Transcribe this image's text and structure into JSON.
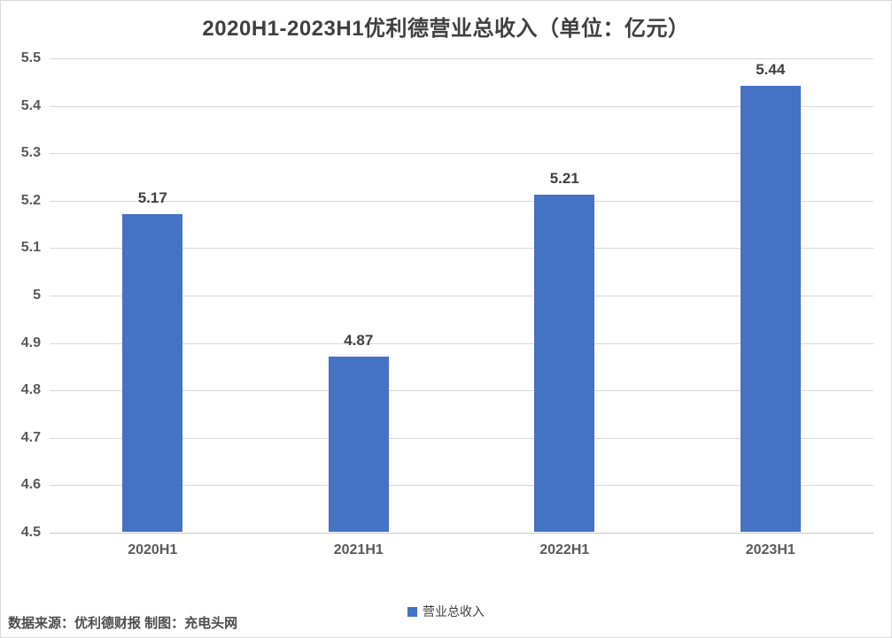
{
  "chart_data": {
    "type": "bar",
    "title": "2020H1-2023H1优利德营业总收入（单位：亿元）",
    "categories": [
      "2020H1",
      "2021H1",
      "2022H1",
      "2023H1"
    ],
    "values": [
      5.17,
      4.87,
      5.21,
      5.44
    ],
    "value_labels": [
      "5.17",
      "4.87",
      "5.21",
      "5.44"
    ],
    "series_name": "营业总收入",
    "legend": [
      "营业总收入"
    ],
    "legend_position": "bottom-center",
    "xlabel": "",
    "ylabel": "",
    "ylim": [
      4.5,
      5.5
    ],
    "yticks": [
      "5.5",
      "5.4",
      "5.3",
      "5.2",
      "5.1",
      "5",
      "4.9",
      "4.8",
      "4.7",
      "4.6",
      "4.5"
    ],
    "grid": "horizontal"
  },
  "footer": {
    "source": "数据来源：优利德财报 制图：充电头网"
  },
  "colors": {
    "bar": "#4472C4",
    "gridline": "#d9d9d9",
    "axis_line": "#c9c7c7",
    "title_text": "#404040",
    "tick_text": "#595959",
    "value_text": "#404040",
    "background": "#ffffff",
    "border": "#d9d9d9"
  }
}
